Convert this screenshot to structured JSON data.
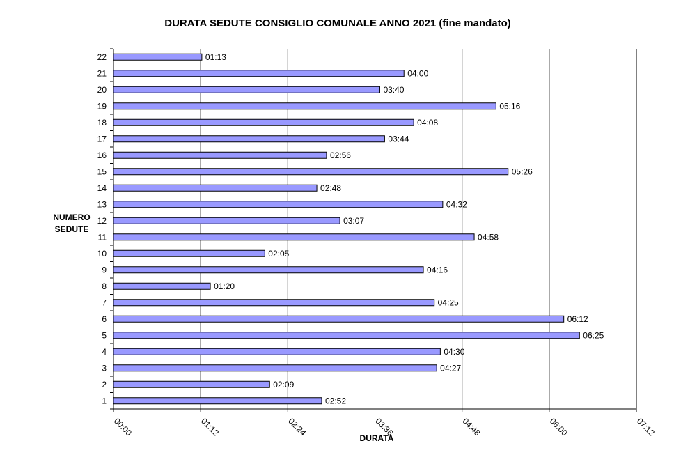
{
  "chart_data": {
    "type": "bar",
    "orientation": "horizontal",
    "title": "DURATA SEDUTE CONSIGLIO COMUNALE ANNO 2021 (fine mandato)",
    "xlabel": "DURATA",
    "ylabel": "NUMERO SEDUTE",
    "ylabel_lines": [
      "NUMERO",
      "SEDUTE"
    ],
    "xlim": [
      "00:00",
      "07:12"
    ],
    "x_ticks": [
      "00:00",
      "01:12",
      "02:24",
      "03:36",
      "04:48",
      "06:00",
      "07:12"
    ],
    "grid": "vertical major",
    "legend": "none",
    "bar_color": "#9999FF",
    "categories": [
      "1",
      "2",
      "3",
      "4",
      "5",
      "6",
      "7",
      "8",
      "9",
      "10",
      "11",
      "12",
      "13",
      "14",
      "15",
      "16",
      "17",
      "18",
      "19",
      "20",
      "21",
      "22"
    ],
    "values": [
      "02:52",
      "02:09",
      "04:27",
      "04:30",
      "06:25",
      "06:12",
      "04:25",
      "01:20",
      "04:16",
      "02:05",
      "04:58",
      "03:07",
      "04:32",
      "02:48",
      "05:26",
      "02:56",
      "03:44",
      "04:08",
      "05:16",
      "03:40",
      "04:00",
      "01:13"
    ]
  }
}
